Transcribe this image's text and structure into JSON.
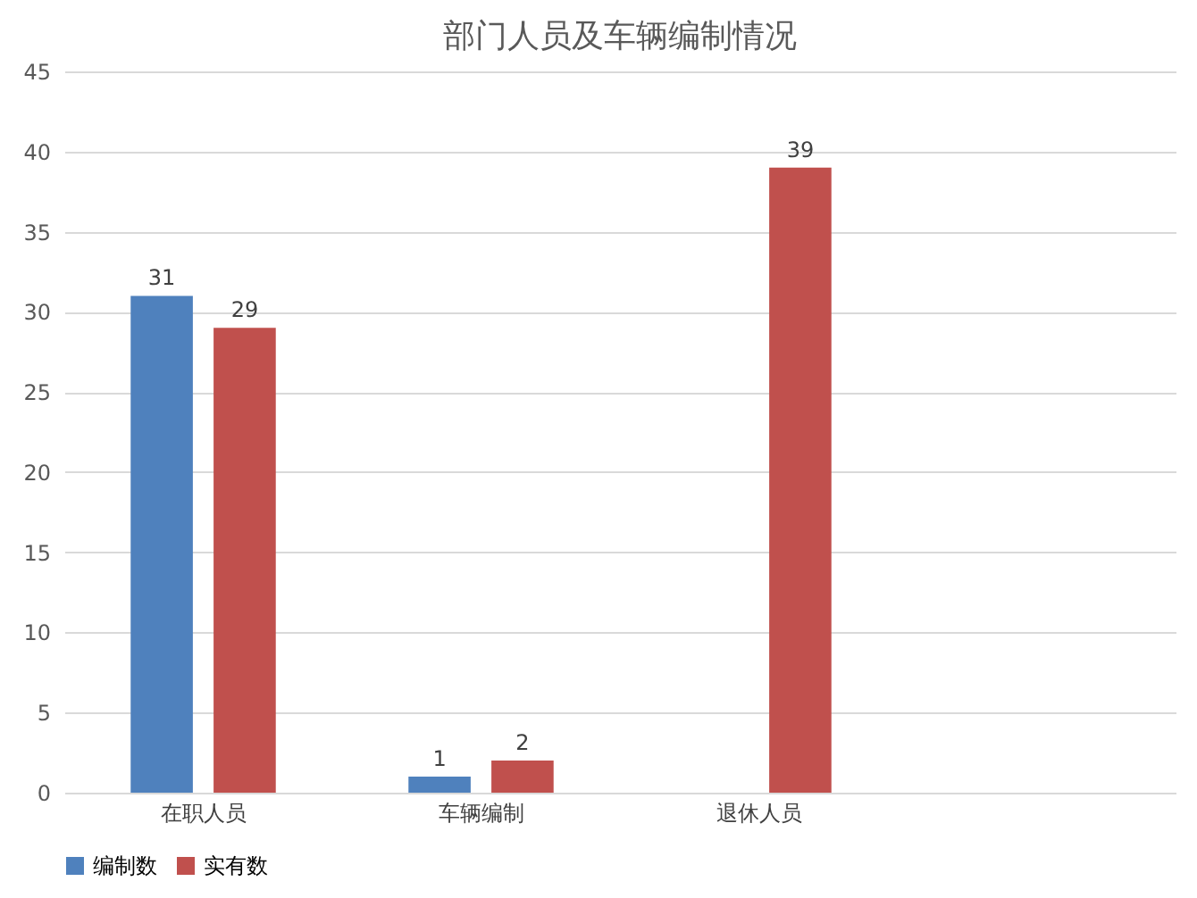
{
  "chart_data": {
    "type": "bar",
    "title": "部门人员及车辆编制情况",
    "categories": [
      "在职人员",
      "车辆编制",
      "退休人员",
      null
    ],
    "series": [
      {
        "name": "编制数",
        "color": "#4f81bd",
        "values": [
          31,
          1,
          null,
          null
        ]
      },
      {
        "name": "实有数",
        "color": "#c0504d",
        "values": [
          29,
          2,
          39,
          null
        ]
      }
    ],
    "ylim": [
      0,
      45
    ],
    "yticks": [
      0,
      5,
      10,
      15,
      20,
      25,
      30,
      35,
      40,
      45
    ],
    "grid": "y",
    "legend": "bottom",
    "data_labels": true
  }
}
